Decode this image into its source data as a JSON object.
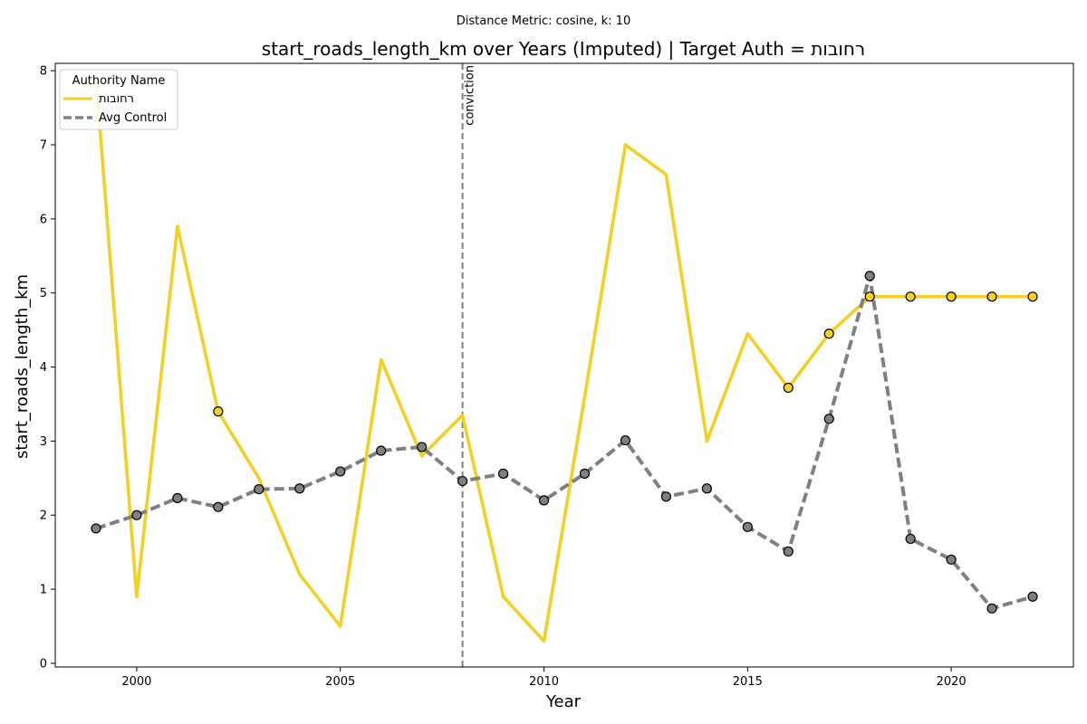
{
  "chart_data": {
    "type": "line",
    "suptitle": "Distance Metric: cosine, k: 10",
    "title": "start_roads_length_km over Years (Imputed) | Target Auth = רחובות",
    "xlabel": "Year",
    "ylabel": "start_roads_length_km",
    "xlim": [
      1998,
      2023
    ],
    "ylim": [
      -0.05,
      8.1
    ],
    "x_ticks": [
      2000,
      2005,
      2010,
      2015,
      2020
    ],
    "y_ticks": [
      0,
      1,
      2,
      3,
      4,
      5,
      6,
      7,
      8
    ],
    "grid": false,
    "legend": {
      "title": "Authority Name",
      "placement": "top-left"
    },
    "vline": {
      "x": 2008,
      "label": "conviction",
      "color": "#808080"
    },
    "x": [
      1999,
      2000,
      2001,
      2002,
      2003,
      2004,
      2005,
      2006,
      2007,
      2008,
      2009,
      2010,
      2011,
      2012,
      2013,
      2014,
      2015,
      2016,
      2017,
      2018,
      2019,
      2020,
      2021,
      2022
    ],
    "series": [
      {
        "name": "רחובות",
        "color": "#f2d024",
        "style": "solid",
        "values": [
          7.9,
          0.9,
          5.9,
          3.4,
          2.5,
          1.2,
          0.5,
          4.1,
          2.8,
          3.35,
          0.9,
          0.3,
          3.6,
          7.0,
          6.6,
          3.0,
          4.45,
          3.72,
          4.45,
          4.95,
          4.95,
          4.95,
          4.95,
          4.95
        ],
        "imputed_x": [
          2002,
          2016,
          2017,
          2018,
          2019,
          2020,
          2021,
          2022
        ]
      },
      {
        "name": "Avg Control",
        "color": "#808080",
        "style": "dashed",
        "values": [
          1.82,
          2.0,
          2.23,
          2.11,
          2.35,
          2.36,
          2.59,
          2.87,
          2.92,
          2.46,
          2.56,
          2.2,
          2.56,
          3.01,
          2.25,
          2.36,
          1.84,
          1.51,
          3.3,
          5.23,
          1.68,
          1.4,
          0.74,
          0.9
        ],
        "imputed_x": [
          1999,
          2000,
          2001,
          2002,
          2003,
          2004,
          2005,
          2006,
          2007,
          2008,
          2009,
          2010,
          2011,
          2012,
          2013,
          2014,
          2015,
          2016,
          2017,
          2018,
          2019,
          2020,
          2021,
          2022
        ]
      }
    ]
  }
}
